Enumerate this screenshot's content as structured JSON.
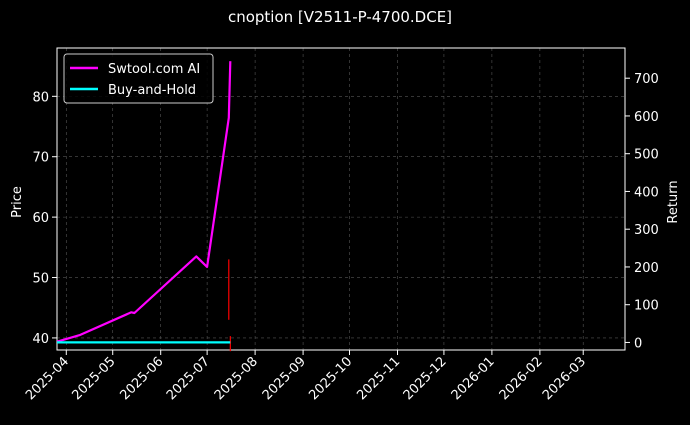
{
  "chart_data": {
    "type": "line",
    "title": "cnoption [V2511-P-4700.DCE]",
    "ylabel": "Price",
    "y2label": "Return",
    "ylim": [
      38,
      88
    ],
    "y2lim": [
      -20,
      780
    ],
    "yticks": [
      "40",
      "50",
      "60",
      "70",
      "80"
    ],
    "y2ticks": [
      "0",
      "100",
      "200",
      "300",
      "400",
      "500",
      "600",
      "700"
    ],
    "xticks": [
      "2025-04",
      "2025-05",
      "2025-06",
      "2025-07",
      "2025-08",
      "2025-09",
      "2025-10",
      "2025-11",
      "2025-12",
      "2026-01",
      "2026-02",
      "2026-03"
    ],
    "xlim": [
      "2025-03-26",
      "2026-03-28"
    ],
    "grid": true,
    "legend_position": "top-left",
    "series": [
      {
        "name": "Swtool.com AI",
        "color": "#ff00ff",
        "axis": "right",
        "x": [
          "2025-03-26",
          "2025-04-10",
          "2025-05-13",
          "2025-05-15",
          "2025-06-24",
          "2025-07-01",
          "2025-07-15",
          "2025-07-16"
        ],
        "values": [
          2,
          20,
          80,
          78,
          228,
          200,
          595,
          745
        ]
      },
      {
        "name": "Buy-and-Hold",
        "color": "#00ffff",
        "axis": "right",
        "x": [
          "2025-03-26",
          "2025-07-16"
        ],
        "values": [
          0,
          0
        ]
      }
    ],
    "annotations": [
      {
        "type": "vline",
        "axis": "left",
        "color": "#ff0000",
        "x": "2025-07-15",
        "y_from": 43,
        "y_to": 53
      },
      {
        "type": "vline",
        "axis": "left",
        "color": "#ff0000",
        "x": "2025-07-16",
        "y_from": 37.8,
        "y_to": 40.3
      }
    ]
  }
}
